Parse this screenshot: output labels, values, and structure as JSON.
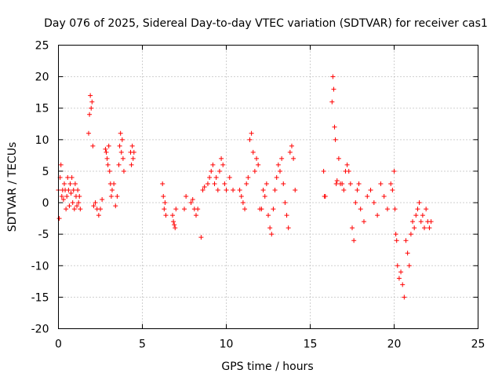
{
  "chart_data": {
    "type": "scatter",
    "title": "Day 076 of 2025, Sidereal Day-to-day VTEC variation (SDTVAR) for receiver cas1",
    "xlabel": "GPS time / hours",
    "ylabel": "SDTVAR / TECUs",
    "xlim": [
      0,
      25
    ],
    "ylim": [
      -20,
      25
    ],
    "xticks": [
      0,
      5,
      10,
      15,
      20,
      25
    ],
    "yticks": [
      -20,
      -15,
      -10,
      -5,
      0,
      5,
      10,
      15,
      20,
      25
    ],
    "grid": true,
    "marker": "+",
    "color": "#ff0000",
    "series": [
      {
        "name": "cas1",
        "x": [
          0.0,
          0.05,
          0.1,
          0.15,
          0.2,
          0.25,
          0.3,
          0.35,
          0.4,
          0.45,
          0.5,
          0.55,
          0.6,
          0.65,
          0.7,
          0.75,
          0.8,
          0.85,
          0.9,
          0.95,
          1.0,
          1.05,
          1.1,
          1.15,
          1.2,
          1.25,
          1.3,
          1.8,
          1.85,
          1.9,
          1.95,
          2.0,
          2.05,
          2.1,
          2.2,
          2.3,
          2.4,
          2.5,
          2.6,
          2.8,
          2.85,
          2.9,
          2.95,
          3.0,
          3.05,
          3.1,
          3.15,
          3.2,
          3.3,
          3.4,
          3.5,
          3.6,
          3.65,
          3.7,
          3.75,
          3.8,
          3.85,
          3.9,
          4.3,
          4.35,
          4.4,
          4.45,
          4.5,
          6.2,
          6.25,
          6.3,
          6.35,
          6.4,
          6.8,
          6.85,
          6.9,
          6.95,
          7.0,
          7.5,
          7.6,
          7.9,
          8.0,
          8.1,
          8.2,
          8.3,
          8.5,
          8.6,
          8.7,
          8.9,
          9.0,
          9.1,
          9.2,
          9.3,
          9.4,
          9.5,
          9.6,
          9.7,
          9.8,
          9.9,
          10.0,
          10.2,
          10.4,
          10.8,
          10.9,
          11.0,
          11.1,
          11.2,
          11.3,
          11.4,
          11.5,
          11.6,
          11.7,
          11.8,
          11.9,
          12.0,
          12.1,
          12.2,
          12.3,
          12.4,
          12.5,
          12.6,
          12.7,
          12.8,
          12.9,
          13.0,
          13.1,
          13.2,
          13.3,
          13.4,
          13.5,
          13.6,
          13.7,
          13.8,
          13.9,
          14.0,
          14.1,
          15.8,
          15.85,
          15.9,
          16.3,
          16.35,
          16.4,
          16.45,
          16.5,
          16.55,
          16.6,
          16.7,
          16.8,
          16.9,
          17.0,
          17.1,
          17.2,
          17.3,
          17.4,
          17.5,
          17.6,
          17.7,
          17.8,
          17.9,
          18.0,
          18.2,
          18.4,
          18.6,
          18.8,
          19.0,
          19.2,
          19.4,
          19.6,
          19.8,
          19.9,
          20.0,
          20.05,
          20.1,
          20.15,
          20.2,
          20.3,
          20.4,
          20.5,
          20.6,
          20.7,
          20.8,
          20.9,
          21.0,
          21.1,
          21.2,
          21.3,
          21.4,
          21.5,
          21.6,
          21.7,
          21.8,
          21.9,
          22.0,
          22.1,
          22.2
        ],
        "y": [
          2,
          -2.5,
          4,
          6,
          1,
          2,
          0.5,
          3,
          2,
          -1,
          1,
          4,
          2,
          -0.5,
          3,
          1.5,
          4,
          0,
          2,
          -1,
          3,
          1,
          -0.5,
          2,
          0,
          1,
          -1,
          11,
          14,
          17,
          15,
          16,
          9,
          -0.5,
          0,
          -1,
          -2,
          -1,
          0.5,
          8.5,
          8,
          7,
          6,
          9,
          5,
          3,
          1,
          2,
          3,
          -0.5,
          1,
          6,
          9,
          11,
          8,
          10,
          7,
          5,
          8,
          6,
          9,
          7,
          8,
          3,
          1,
          -1,
          0,
          -2,
          -2,
          -3,
          -3.5,
          -4,
          -1,
          -1,
          1,
          0,
          0.5,
          -1,
          -2,
          -1,
          -5.5,
          2,
          2.5,
          3,
          4,
          5,
          6,
          3,
          4,
          2,
          5,
          7,
          6,
          3,
          2,
          4,
          2,
          2,
          1,
          0,
          -1,
          3,
          4,
          10,
          11,
          8,
          5,
          7,
          6,
          -1,
          -1,
          2,
          1,
          3,
          -2,
          -4,
          -5,
          -1,
          2,
          4,
          6,
          5,
          7,
          3,
          0,
          -2,
          -4,
          8,
          9,
          7,
          2,
          5,
          1,
          1,
          16,
          20,
          18,
          12,
          10,
          3,
          3.5,
          7,
          3,
          3,
          2,
          5,
          6,
          5,
          3,
          -4,
          -6,
          0,
          2,
          3,
          -1,
          -3,
          1,
          2,
          0,
          -2,
          3,
          1,
          -1,
          3,
          2,
          5,
          -1,
          -5,
          -6,
          -10,
          -12,
          -11,
          -13,
          -15,
          -6,
          -8,
          -10,
          -5,
          -3,
          -4,
          -2,
          -1,
          0,
          -3,
          -2,
          -4,
          -1,
          -3,
          -4,
          -3
        ]
      }
    ]
  }
}
